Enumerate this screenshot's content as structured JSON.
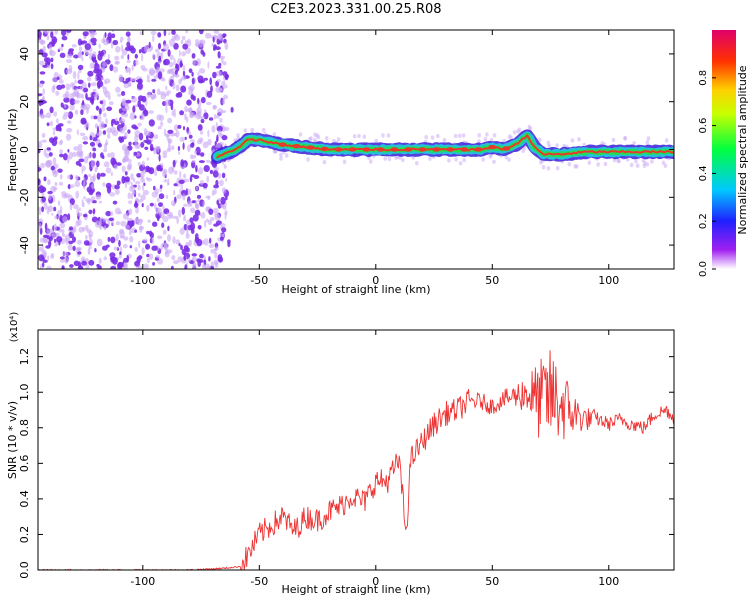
{
  "title": "C2E3.2023.331.00.25.R08",
  "colors": {
    "snr_line": "#ee3333",
    "scatter_dots": "#7a2ee6",
    "scatter_dots_light": "#c9a6f5",
    "spectrum_hot": "#e83a2a",
    "spectrum_mid": "#22dd55",
    "spectrum_cool": "#22c8d8"
  },
  "chart_data": [
    {
      "type": "heatmap",
      "title": "C2E3.2023.331.00.25.R08",
      "xlabel": "Height of straight line (km)",
      "ylabel": "Frequency (Hz)",
      "xlim": [
        -145,
        128
      ],
      "ylim": [
        -50,
        50
      ],
      "xticks": [
        "-100",
        "-50",
        "0",
        "50",
        "100"
      ],
      "yticks": [
        "-40",
        "-20",
        "0",
        "20",
        "40"
      ],
      "dominant_frequency_trace": {
        "x": [
          -68,
          -60,
          -55,
          -50,
          -40,
          -30,
          -20,
          -10,
          0,
          10,
          20,
          30,
          40,
          45,
          50,
          55,
          60,
          65,
          68,
          72,
          80,
          90,
          100,
          110,
          120,
          128
        ],
        "y": [
          -3,
          0,
          4,
          4,
          2,
          1,
          0,
          0,
          0,
          0,
          0,
          0,
          0,
          0,
          1,
          0,
          2,
          6,
          1,
          -2,
          -2,
          -1,
          -1,
          -1,
          -1,
          -1
        ]
      },
      "noise_region_x": [
        -145,
        -64
      ],
      "colorbar": {
        "label": "Normalized spectral amplitude",
        "range": [
          0.0,
          1.0
        ],
        "ticks": [
          "0.0",
          "0.2",
          "0.4",
          "0.6",
          "0.8"
        ]
      }
    },
    {
      "type": "line",
      "xlabel": "Height of straight line (km)",
      "ylabel": "SNR (10 * v/v)",
      "multiplier": "(x10⁴)",
      "xlim": [
        -145,
        128
      ],
      "ylim": [
        0.0,
        1.35
      ],
      "xticks": [
        "-100",
        "-50",
        "0",
        "50",
        "100"
      ],
      "yticks": [
        "0.0",
        "0.2",
        "0.4",
        "0.6",
        "0.8",
        "1.0",
        "1.2"
      ],
      "series": [
        {
          "x": [
            -145,
            -120,
            -100,
            -80,
            -65,
            -58,
            -55,
            -50,
            -45,
            -40,
            -35,
            -30,
            -25,
            -20,
            -15,
            -10,
            -5,
            0,
            5,
            10,
            13,
            15,
            20,
            25,
            30,
            35,
            40,
            45,
            50,
            55,
            60,
            65,
            70,
            75,
            80,
            85,
            90,
            95,
            100,
            105,
            110,
            115,
            120,
            125,
            128
          ],
          "y": [
            0.0,
            0.0,
            0.0,
            0.0,
            0.01,
            0.02,
            0.08,
            0.2,
            0.25,
            0.3,
            0.22,
            0.3,
            0.28,
            0.33,
            0.36,
            0.42,
            0.38,
            0.5,
            0.5,
            0.62,
            0.2,
            0.62,
            0.72,
            0.82,
            0.88,
            0.9,
            0.95,
            0.95,
            0.92,
            0.96,
            0.98,
            1.0,
            0.95,
            0.98,
            0.93,
            0.88,
            0.85,
            0.85,
            0.82,
            0.85,
            0.82,
            0.8,
            0.88,
            0.9,
            0.85
          ]
        }
      ]
    }
  ]
}
